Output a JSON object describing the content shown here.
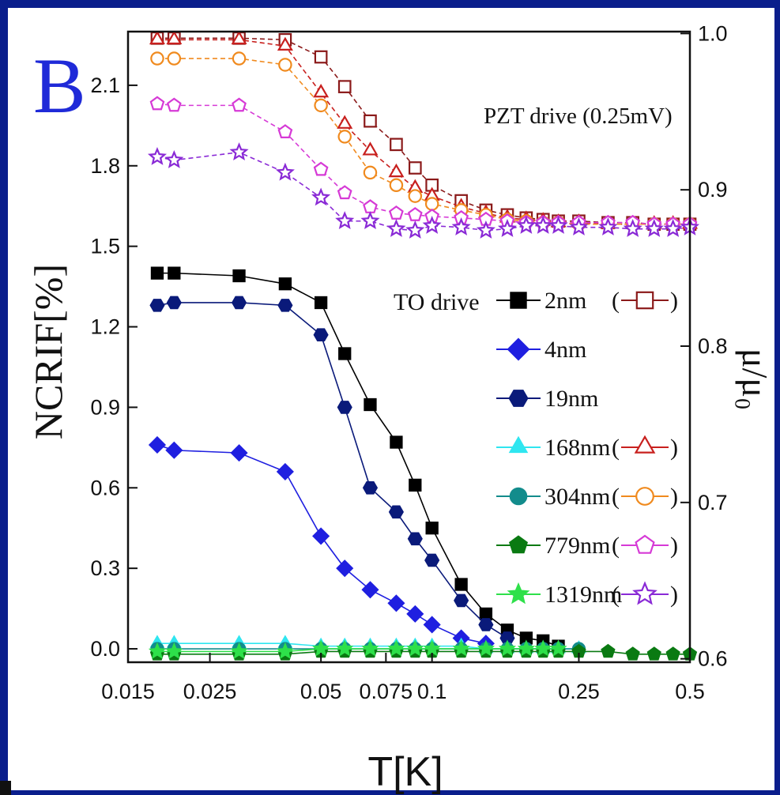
{
  "chart_data": {
    "type": "scatter",
    "panel_label": "B",
    "xlabel": "T[K]",
    "ylabel": "NCRIF[%]",
    "y2label": "μ/μ₀",
    "x_scale": "log",
    "xlim": [
      0.015,
      0.5
    ],
    "ylim": [
      -0.05,
      2.3
    ],
    "y2lim": [
      0.5978,
      1.0012
    ],
    "x_ticks": [
      0.015,
      0.025,
      0.05,
      0.075,
      0.1,
      0.25,
      0.5
    ],
    "x_tick_labels": [
      "0.015",
      "0.025",
      "0.05",
      "0.075",
      "0.1",
      "0.25",
      "0.5"
    ],
    "y_ticks": [
      0.0,
      0.3,
      0.6,
      0.9,
      1.2,
      1.5,
      1.8,
      2.1
    ],
    "y_tick_labels": [
      "0.0",
      "0.3",
      "0.6",
      "0.9",
      "1.2",
      "1.5",
      "1.8",
      "2.1"
    ],
    "y2_ticks": [
      0.6,
      0.7,
      0.8,
      0.9,
      1.0
    ],
    "y2_tick_labels": [
      "0.6",
      "0.7",
      "0.8",
      "0.9",
      "1.0"
    ],
    "annotation": "PZT drive (0.25mV)",
    "legend_title": "TO drive",
    "legend": [
      {
        "label": "2nm",
        "marker": "square",
        "color": "#000000",
        "pzt": "square"
      },
      {
        "label": "4nm",
        "marker": "diamond",
        "color": "#1f1fe0",
        "pzt": null
      },
      {
        "label": "19nm",
        "marker": "hexagon",
        "color": "#0a1a7a",
        "pzt": null
      },
      {
        "label": "168nm",
        "marker": "triangle",
        "color": "#2fe6f0",
        "pzt": "triangle"
      },
      {
        "label": "304nm",
        "marker": "circle",
        "color": "#138c8c",
        "pzt": "circle"
      },
      {
        "label": "779nm",
        "marker": "pentagon",
        "color": "#0a7a12",
        "pzt": "pentagon"
      },
      {
        "label": "1319nm",
        "marker": "star",
        "color": "#2ee04a",
        "pzt": "star"
      }
    ],
    "series": [
      {
        "name": "2nm",
        "axis": "left",
        "marker": "square",
        "color": "#000000",
        "filled": true,
        "x": [
          0.018,
          0.02,
          0.03,
          0.04,
          0.05,
          0.058,
          0.068,
          0.08,
          0.09,
          0.1,
          0.12,
          0.14,
          0.16,
          0.18,
          0.2,
          0.22
        ],
        "y": [
          1.4,
          1.4,
          1.39,
          1.36,
          1.29,
          1.1,
          0.91,
          0.77,
          0.61,
          0.45,
          0.24,
          0.13,
          0.07,
          0.04,
          0.03,
          0.01
        ]
      },
      {
        "name": "4nm",
        "axis": "left",
        "marker": "diamond",
        "color": "#1f1fe0",
        "filled": true,
        "x": [
          0.018,
          0.02,
          0.03,
          0.04,
          0.05,
          0.058,
          0.068,
          0.08,
          0.09,
          0.1,
          0.12,
          0.14
        ],
        "y": [
          0.76,
          0.74,
          0.73,
          0.66,
          0.42,
          0.3,
          0.22,
          0.17,
          0.13,
          0.09,
          0.04,
          0.02
        ]
      },
      {
        "name": "19nm",
        "axis": "left",
        "marker": "hexagon",
        "color": "#0a1a7a",
        "filled": true,
        "x": [
          0.018,
          0.02,
          0.03,
          0.04,
          0.05,
          0.058,
          0.068,
          0.08,
          0.09,
          0.1,
          0.12,
          0.14,
          0.16
        ],
        "y": [
          1.28,
          1.29,
          1.29,
          1.28,
          1.17,
          0.9,
          0.6,
          0.51,
          0.41,
          0.33,
          0.18,
          0.09,
          0.04
        ]
      },
      {
        "name": "168nm",
        "axis": "left",
        "marker": "triangle",
        "color": "#2fe6f0",
        "filled": true,
        "x": [
          0.018,
          0.02,
          0.03,
          0.04,
          0.05,
          0.058,
          0.068,
          0.08,
          0.09,
          0.1,
          0.12,
          0.14,
          0.16,
          0.18,
          0.2,
          0.22,
          0.25
        ],
        "y": [
          0.02,
          0.02,
          0.02,
          0.02,
          0.01,
          0.01,
          0.01,
          0.01,
          0.01,
          0.01,
          0.01,
          0.0,
          0.0,
          0.0,
          0.0,
          0.0,
          0.0
        ]
      },
      {
        "name": "304nm",
        "axis": "left",
        "marker": "circle",
        "color": "#138c8c",
        "filled": true,
        "x": [
          0.018,
          0.02,
          0.03,
          0.04,
          0.05,
          0.058,
          0.068,
          0.08,
          0.09,
          0.1,
          0.12,
          0.14,
          0.16,
          0.18,
          0.2,
          0.22,
          0.25
        ],
        "y": [
          0.0,
          0.0,
          0.0,
          0.0,
          0.0,
          0.0,
          0.0,
          0.0,
          0.0,
          0.0,
          0.0,
          0.0,
          0.0,
          0.0,
          0.0,
          0.0,
          0.0
        ]
      },
      {
        "name": "779nm",
        "axis": "left",
        "marker": "pentagon",
        "color": "#0a7a12",
        "filled": true,
        "x": [
          0.018,
          0.02,
          0.03,
          0.04,
          0.05,
          0.058,
          0.068,
          0.08,
          0.09,
          0.1,
          0.12,
          0.14,
          0.16,
          0.18,
          0.2,
          0.22,
          0.25,
          0.3,
          0.35,
          0.4,
          0.45,
          0.5
        ],
        "y": [
          -0.02,
          -0.02,
          -0.02,
          -0.02,
          -0.01,
          -0.01,
          -0.01,
          -0.01,
          -0.01,
          -0.01,
          -0.01,
          -0.01,
          -0.01,
          -0.01,
          -0.01,
          -0.01,
          -0.01,
          -0.01,
          -0.02,
          -0.02,
          -0.02,
          -0.02
        ]
      },
      {
        "name": "1319nm",
        "axis": "left",
        "marker": "star",
        "color": "#2ee04a",
        "filled": true,
        "x": [
          0.018,
          0.02,
          0.03,
          0.04,
          0.05,
          0.058,
          0.068,
          0.08,
          0.09,
          0.1,
          0.12,
          0.14,
          0.16,
          0.18,
          0.2,
          0.22
        ],
        "y": [
          -0.01,
          -0.01,
          -0.01,
          -0.01,
          0.0,
          0.0,
          0.0,
          0.0,
          0.0,
          0.0,
          0.0,
          0.0,
          0.0,
          0.0,
          0.0,
          0.0
        ]
      },
      {
        "name": "2nm",
        "axis": "right",
        "marker": "square",
        "color": "#8b1a1a",
        "filled": false,
        "x": [
          0.018,
          0.02,
          0.03,
          0.04,
          0.05,
          0.058,
          0.068,
          0.08,
          0.09,
          0.1,
          0.12,
          0.14,
          0.16,
          0.18,
          0.2,
          0.22,
          0.25,
          0.3,
          0.35,
          0.4,
          0.45,
          0.5
        ],
        "y": [
          0.997,
          0.997,
          0.997,
          0.996,
          0.985,
          0.966,
          0.944,
          0.929,
          0.914,
          0.903,
          0.893,
          0.887,
          0.884,
          0.882,
          0.881,
          0.88,
          0.88,
          0.879,
          0.879,
          0.878,
          0.878,
          0.878
        ]
      },
      {
        "name": "168nm",
        "axis": "right",
        "marker": "triangle",
        "color": "#c8201e",
        "filled": false,
        "x": [
          0.018,
          0.02,
          0.03,
          0.04,
          0.05,
          0.058,
          0.068,
          0.08,
          0.09,
          0.1,
          0.12,
          0.14,
          0.16,
          0.18,
          0.2,
          0.22,
          0.25,
          0.3,
          0.35,
          0.4,
          0.45,
          0.5
        ],
        "y": [
          0.996,
          0.996,
          0.996,
          0.992,
          0.962,
          0.942,
          0.925,
          0.911,
          0.901,
          0.896,
          0.889,
          0.885,
          0.882,
          0.881,
          0.88,
          0.879,
          0.879,
          0.878,
          0.878,
          0.878,
          0.878,
          0.878
        ]
      },
      {
        "name": "304nm",
        "axis": "right",
        "marker": "circle",
        "color": "#f08a1e",
        "filled": false,
        "x": [
          0.018,
          0.02,
          0.03,
          0.04,
          0.05,
          0.058,
          0.068,
          0.08,
          0.09,
          0.1,
          0.12,
          0.14,
          0.16,
          0.18,
          0.2,
          0.22,
          0.25,
          0.3,
          0.35,
          0.4,
          0.45,
          0.5
        ],
        "y": [
          0.984,
          0.984,
          0.984,
          0.98,
          0.954,
          0.934,
          0.911,
          0.903,
          0.896,
          0.891,
          0.887,
          0.884,
          0.881,
          0.88,
          0.879,
          0.879,
          0.878,
          0.878,
          0.878,
          0.878,
          0.878,
          0.878
        ]
      },
      {
        "name": "779nm",
        "axis": "right",
        "marker": "pentagon",
        "color": "#d63ad6",
        "filled": false,
        "x": [
          0.018,
          0.02,
          0.03,
          0.04,
          0.05,
          0.058,
          0.068,
          0.08,
          0.09,
          0.1,
          0.12,
          0.14,
          0.16,
          0.18,
          0.2,
          0.22,
          0.25,
          0.3,
          0.35,
          0.4,
          0.45,
          0.5
        ],
        "y": [
          0.955,
          0.954,
          0.954,
          0.937,
          0.913,
          0.898,
          0.889,
          0.885,
          0.884,
          0.883,
          0.882,
          0.881,
          0.88,
          0.879,
          0.879,
          0.879,
          0.879,
          0.879,
          0.879,
          0.878,
          0.878,
          0.878
        ]
      },
      {
        "name": "1319nm",
        "axis": "right",
        "marker": "star",
        "color": "#8a2ad6",
        "filled": false,
        "x": [
          0.018,
          0.02,
          0.03,
          0.04,
          0.05,
          0.058,
          0.068,
          0.08,
          0.09,
          0.1,
          0.12,
          0.14,
          0.16,
          0.18,
          0.2,
          0.22,
          0.25,
          0.3,
          0.35,
          0.4,
          0.45,
          0.5
        ],
        "y": [
          0.921,
          0.919,
          0.924,
          0.911,
          0.895,
          0.88,
          0.88,
          0.875,
          0.874,
          0.877,
          0.876,
          0.874,
          0.875,
          0.877,
          0.877,
          0.877,
          0.876,
          0.876,
          0.875,
          0.875,
          0.875,
          0.876
        ]
      }
    ]
  }
}
